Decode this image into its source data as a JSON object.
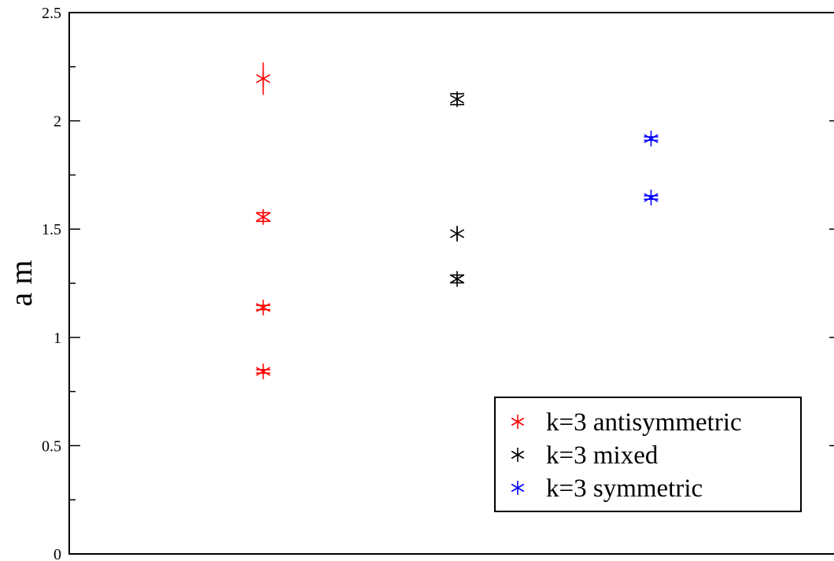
{
  "chart_data": {
    "type": "scatter",
    "title": "",
    "xlabel": "",
    "ylabel": "a m",
    "ylim": [
      0,
      2.5
    ],
    "xlim": [
      0,
      4
    ],
    "yticks": [
      0,
      0.5,
      1,
      1.5,
      2,
      2.5
    ],
    "ytick_labels": [
      "0",
      "0.5",
      "1",
      "1.5",
      "2",
      "2.5"
    ],
    "grid": false,
    "legend_position": "bottom-right",
    "series": [
      {
        "name": "k=3 antisymmetric",
        "color": "#ff0000",
        "marker": "asterisk",
        "points": [
          {
            "x": 1,
            "y": 2.195,
            "err": 0.075
          },
          {
            "x": 1,
            "y": 1.556,
            "err": 0.02
          },
          {
            "x": 1,
            "y": 1.138,
            "err": 0.01
          },
          {
            "x": 1,
            "y": 0.843,
            "err": 0.008
          }
        ]
      },
      {
        "name": "k=3 mixed",
        "color": "#000000",
        "marker": "asterisk",
        "points": [
          {
            "x": 2,
            "y": 2.1,
            "err": 0.025
          },
          {
            "x": 2,
            "y": 1.479,
            "err": 0.03
          },
          {
            "x": 2,
            "y": 1.27,
            "err": 0.018
          }
        ]
      },
      {
        "name": "k=3 symmetric",
        "color": "#0000ff",
        "marker": "asterisk",
        "points": [
          {
            "x": 3,
            "y": 1.918,
            "err": 0.008
          },
          {
            "x": 3,
            "y": 1.646,
            "err": 0.008
          }
        ]
      }
    ]
  }
}
